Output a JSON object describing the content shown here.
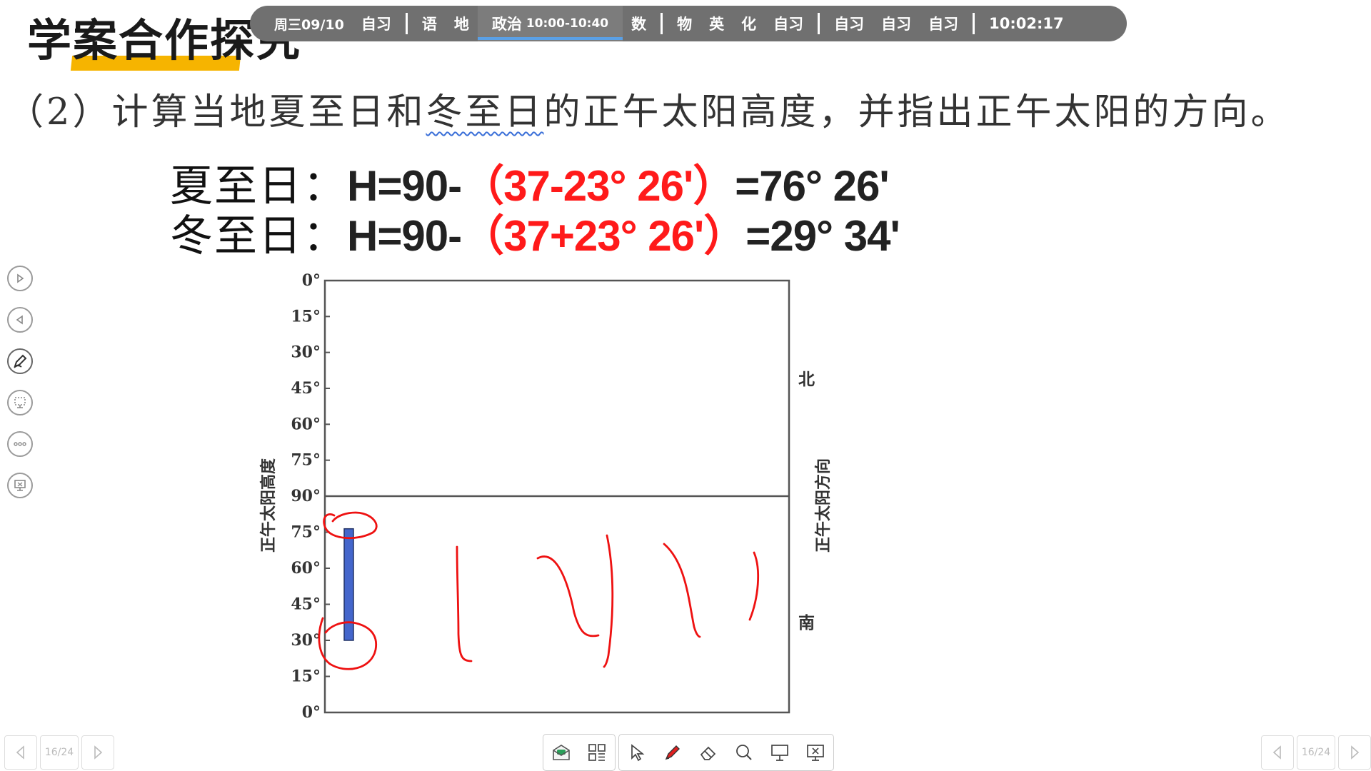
{
  "heading": {
    "text": "学案合作探究"
  },
  "schedule": {
    "items": [
      {
        "label": "周三09/10",
        "type": "date"
      },
      {
        "label": "自习"
      },
      {
        "sep": true
      },
      {
        "label": "语"
      },
      {
        "label": "地"
      },
      {
        "label": "政治",
        "time": "10:00-10:40",
        "active": true
      },
      {
        "label": "数"
      },
      {
        "sep": true
      },
      {
        "label": "物"
      },
      {
        "label": "英"
      },
      {
        "label": "化"
      },
      {
        "label": "自习"
      },
      {
        "sep": true
      },
      {
        "label": "自习"
      },
      {
        "label": "自习"
      },
      {
        "label": "自习"
      },
      {
        "sep": true
      },
      {
        "label": "10:02:17",
        "type": "clock"
      }
    ]
  },
  "question": {
    "prefix": "（2）计算当地夏至日和",
    "underlined": "冬至日",
    "suffix": "的正午太阳高度，并指出正午太阳的方向。"
  },
  "formulas": {
    "summer": {
      "label": "夏至日：",
      "left": "H=90-",
      "red": "（37-23°  26'）",
      "right": "=76°  26'"
    },
    "winter": {
      "label": "冬至日：",
      "left": "H=90-",
      "red": "（37+23°  26'）",
      "right": "=29°  34'"
    }
  },
  "side_tools": [
    "play-forward-icon",
    "play-back-icon",
    "pen-icon",
    "screen-select-icon",
    "more-icon",
    "screen-off-icon"
  ],
  "chart_data": {
    "type": "bar",
    "ylabel": "正午太阳高度",
    "y2label": "正午太阳方向",
    "north_label": "北",
    "south_label": "南",
    "top_ticks": [
      "0°",
      "15°",
      "30°",
      "45°",
      "60°",
      "75°",
      "90°"
    ],
    "bottom_ticks": [
      "75°",
      "60°",
      "45°",
      "30°",
      "15°",
      "0°"
    ],
    "bars": [
      {
        "side": "south",
        "from": 30,
        "to": 76.43
      }
    ],
    "bar_color": "#4466cc"
  },
  "nav": {
    "page": "16/24"
  },
  "colors": {
    "accent_yellow": "#f6b400",
    "annotation_red": "#ff1a1a",
    "schedule_bg": "#707070"
  }
}
